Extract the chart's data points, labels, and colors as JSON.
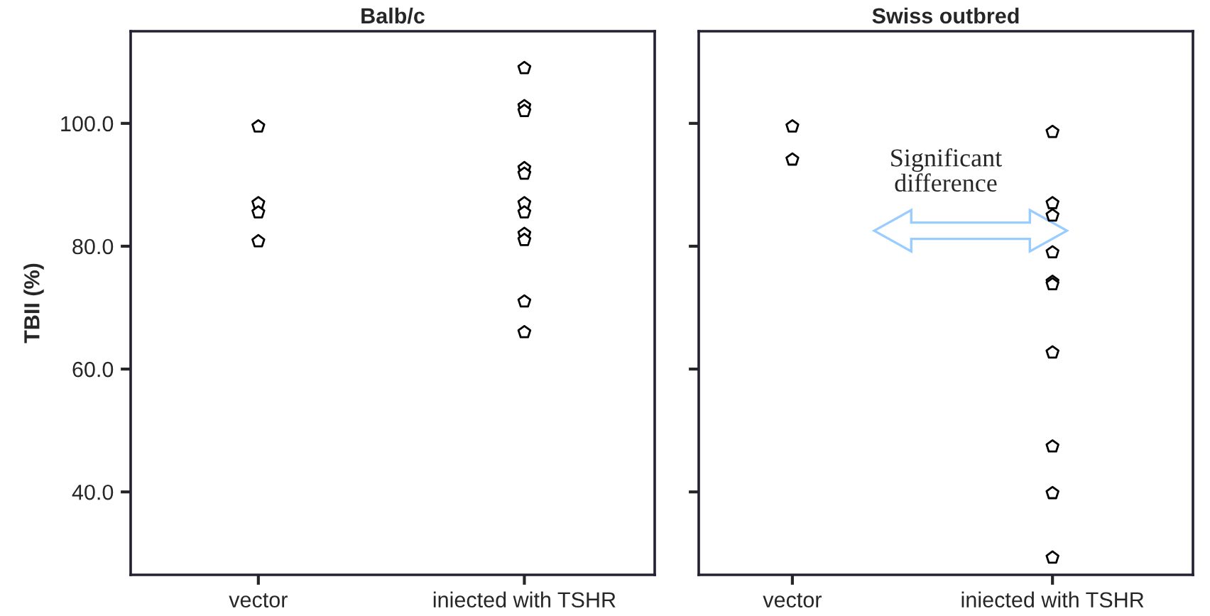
{
  "chart_data": [
    {
      "type": "scatter",
      "title": "Balb/c",
      "ylabel": "TBII (%)",
      "categories": [
        "vector",
        "iniected with TSHR"
      ],
      "ylim": [
        26.5,
        115
      ],
      "yticks": [
        {
          "value": 40,
          "label": "40.0"
        },
        {
          "value": 60,
          "label": "60.0"
        },
        {
          "value": 80,
          "label": "80.0"
        },
        {
          "value": 100,
          "label": "100.0"
        }
      ],
      "grid": false,
      "legend": false,
      "series": [
        {
          "color": "#000000",
          "x": [
            "vector",
            "vector",
            "vector",
            "vector",
            "iniected with TSHR",
            "iniected with TSHR",
            "iniected with TSHR",
            "iniected with TSHR",
            "iniected with TSHR",
            "iniected with TSHR",
            "iniected with TSHR",
            "iniected with TSHR",
            "iniected with TSHR",
            "iniected with TSHR",
            "iniected with TSHR"
          ],
          "values": [
            99.5,
            87,
            85.5,
            80.8,
            109,
            102.8,
            102,
            92.7,
            91.8,
            87,
            85.5,
            82,
            81,
            71,
            66
          ]
        }
      ]
    },
    {
      "type": "scatter",
      "title": "Swiss outbred",
      "categories": [
        "vector",
        "iniected with TSHR"
      ],
      "ylim": [
        26.5,
        115
      ],
      "yticks": [
        {
          "value": 40,
          "label": null
        },
        {
          "value": 60,
          "label": null
        },
        {
          "value": 80,
          "label": null
        },
        {
          "value": 100,
          "label": null
        }
      ],
      "tick_labels": "x",
      "grid": false,
      "legend": false,
      "annotations": [
        "Significant\ndifference"
      ],
      "series": [
        {
          "color": "#000000",
          "x": [
            "vector",
            "vector",
            "iniected with TSHR",
            "iniected with TSHR",
            "iniected with TSHR",
            "iniected with TSHR",
            "iniected with TSHR",
            "iniected with TSHR",
            "iniected with TSHR",
            "iniected with TSHR",
            "iniected with TSHR",
            "iniected with TSHR"
          ],
          "values": [
            99.5,
            94.1,
            98.6,
            87,
            85,
            79,
            74.2,
            73.8,
            62.7,
            47.4,
            39.8,
            29.3
          ]
        }
      ]
    }
  ]
}
